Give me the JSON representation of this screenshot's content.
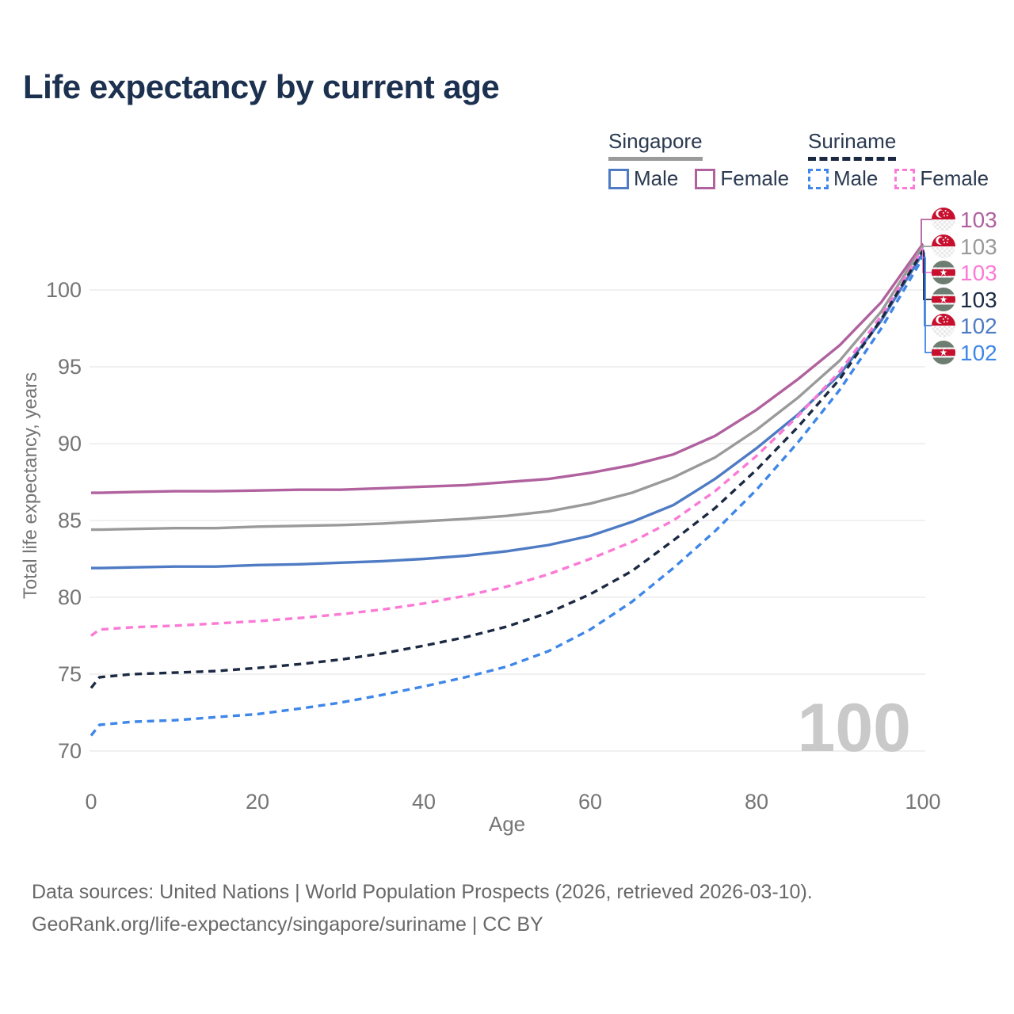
{
  "header": {
    "title": "Life expectancy by current age"
  },
  "legend": {
    "groups": [
      {
        "country": "Singapore",
        "line_style": "solid",
        "underline_color": "#9a9a9a",
        "items": [
          {
            "label": "Male",
            "color": "#4e7bc4"
          },
          {
            "label": "Female",
            "color": "#b0619e"
          }
        ]
      },
      {
        "country": "Suriname",
        "line_style": "dashed",
        "underline_color": "#1b2942",
        "items": [
          {
            "label": "Male",
            "color": "#3e86e8"
          },
          {
            "label": "Female",
            "color": "#fb7ad6"
          }
        ]
      }
    ]
  },
  "chart_data": {
    "type": "line",
    "title": "Life expectancy by current age",
    "xlabel": "Age",
    "ylabel": "Total life expectancy, years",
    "x_ticks": [
      0,
      20,
      40,
      60,
      80,
      100
    ],
    "y_ticks": [
      70,
      75,
      80,
      85,
      90,
      95,
      100
    ],
    "xlim": [
      0,
      100
    ],
    "ylim": [
      69,
      103.5
    ],
    "grid": "horizontal",
    "legend_position": "top-right",
    "watermark": "100",
    "x": [
      0,
      1,
      5,
      10,
      15,
      20,
      25,
      30,
      35,
      40,
      45,
      50,
      55,
      60,
      65,
      70,
      75,
      80,
      85,
      90,
      95,
      100
    ],
    "series": [
      {
        "name": "Singapore Female",
        "country": "Singapore",
        "sex": "Female",
        "color": "#b0619e",
        "dash": "solid",
        "end_label": "103",
        "label_row": 0,
        "flag": "singapore",
        "values": [
          86.8,
          86.8,
          86.85,
          86.9,
          86.9,
          86.95,
          87.0,
          87.0,
          87.1,
          87.2,
          87.3,
          87.5,
          87.7,
          88.1,
          88.6,
          89.3,
          90.5,
          92.2,
          94.2,
          96.4,
          99.2,
          103.0
        ]
      },
      {
        "name": "Singapore Both sexes",
        "country": "Singapore",
        "sex": "Both",
        "color": "#9a9a9a",
        "dash": "solid",
        "end_label": "103",
        "label_row": 1,
        "flag": "singapore",
        "values": [
          84.4,
          84.4,
          84.45,
          84.5,
          84.5,
          84.6,
          84.65,
          84.7,
          84.8,
          84.95,
          85.1,
          85.3,
          85.6,
          86.1,
          86.8,
          87.8,
          89.1,
          90.9,
          93.0,
          95.4,
          98.6,
          102.85
        ]
      },
      {
        "name": "Singapore Male",
        "country": "Singapore",
        "sex": "Male",
        "color": "#4e7bc4",
        "dash": "solid",
        "end_label": "102",
        "label_row": 4,
        "flag": "singapore",
        "values": [
          81.9,
          81.9,
          81.95,
          82.0,
          82.0,
          82.1,
          82.15,
          82.25,
          82.35,
          82.5,
          82.7,
          83.0,
          83.4,
          84.0,
          84.9,
          86.0,
          87.7,
          89.7,
          91.9,
          94.5,
          98.0,
          102.4
        ]
      },
      {
        "name": "Suriname Female",
        "country": "Suriname",
        "sex": "Female",
        "color": "#fb7ad6",
        "dash": "dashed",
        "end_label": "103",
        "label_row": 2,
        "flag": "suriname",
        "values": [
          77.5,
          77.9,
          78.05,
          78.15,
          78.3,
          78.45,
          78.65,
          78.9,
          79.2,
          79.6,
          80.1,
          80.7,
          81.5,
          82.5,
          83.6,
          85.0,
          86.9,
          89.2,
          91.8,
          94.7,
          98.3,
          102.7
        ]
      },
      {
        "name": "Suriname Both sexes",
        "country": "Suriname",
        "sex": "Both",
        "color": "#1b2942",
        "dash": "dashed",
        "end_label": "103",
        "label_row": 3,
        "flag": "suriname",
        "values": [
          74.1,
          74.8,
          75.0,
          75.1,
          75.2,
          75.4,
          75.65,
          75.95,
          76.35,
          76.85,
          77.4,
          78.1,
          79.0,
          80.2,
          81.7,
          83.7,
          85.8,
          88.3,
          91.1,
          94.2,
          98.1,
          102.55
        ]
      },
      {
        "name": "Suriname Male",
        "country": "Suriname",
        "sex": "Male",
        "color": "#3e86e8",
        "dash": "dashed",
        "end_label": "102",
        "label_row": 5,
        "flag": "suriname",
        "values": [
          71.0,
          71.7,
          71.9,
          72.0,
          72.2,
          72.4,
          72.75,
          73.15,
          73.65,
          74.2,
          74.8,
          75.5,
          76.5,
          77.9,
          79.7,
          81.9,
          84.3,
          87.0,
          90.1,
          93.5,
          97.5,
          102.1
        ]
      }
    ]
  },
  "footer": {
    "line1": "Data sources: United Nations | World Population Prospects (2026, retrieved 2026-03-10).",
    "line2": "GeoRank.org/life-expectancy/singapore/suriname | CC BY"
  }
}
